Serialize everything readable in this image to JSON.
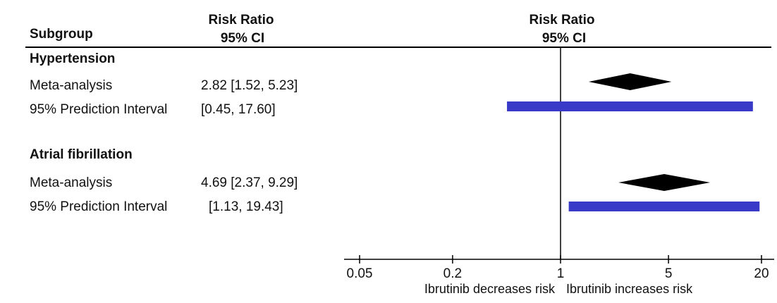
{
  "header": {
    "subgroup": "Subgroup",
    "rr_col_line1": "Risk Ratio",
    "rr_col_line2": "95% CI",
    "plot_line1": "Risk Ratio",
    "plot_line2": "95% CI"
  },
  "groups": [
    {
      "name": "Hypertension",
      "rows": [
        {
          "label": "Meta-analysis",
          "ci_text": "2.82 [1.52, 5.23]"
        },
        {
          "label": "95% Prediction Interval",
          "ci_text": "[0.45, 17.60]"
        }
      ]
    },
    {
      "name": "Atrial fibrillation",
      "rows": [
        {
          "label": "Meta-analysis",
          "ci_text": "4.69 [2.37, 9.29]"
        },
        {
          "label": "95% Prediction Interval",
          "ci_text": "[1.13, 19.43]"
        }
      ]
    }
  ],
  "colors": {
    "diamond": "#000000",
    "interval": "#3a3ac8",
    "axis": "#000000"
  },
  "chart_data": {
    "type": "forest",
    "x_scale": "log",
    "xlim": [
      0.05,
      20
    ],
    "ticks": [
      0.05,
      0.2,
      1,
      5,
      20
    ],
    "tick_labels": [
      "0.05",
      "0.2",
      "1",
      "5",
      "20"
    ],
    "reference_line": 1,
    "left_caption": "Ibrutinib decreases risk",
    "right_caption": "Ibrutinib increases risk",
    "estimates": [
      {
        "group": "Hypertension",
        "kind": "meta-analysis",
        "estimate": 2.82,
        "lower": 1.52,
        "upper": 5.23
      },
      {
        "group": "Hypertension",
        "kind": "prediction-interval",
        "lower": 0.45,
        "upper": 17.6
      },
      {
        "group": "Atrial fibrillation",
        "kind": "meta-analysis",
        "estimate": 4.69,
        "lower": 2.37,
        "upper": 9.29
      },
      {
        "group": "Atrial fibrillation",
        "kind": "prediction-interval",
        "lower": 1.13,
        "upper": 19.43
      }
    ]
  }
}
